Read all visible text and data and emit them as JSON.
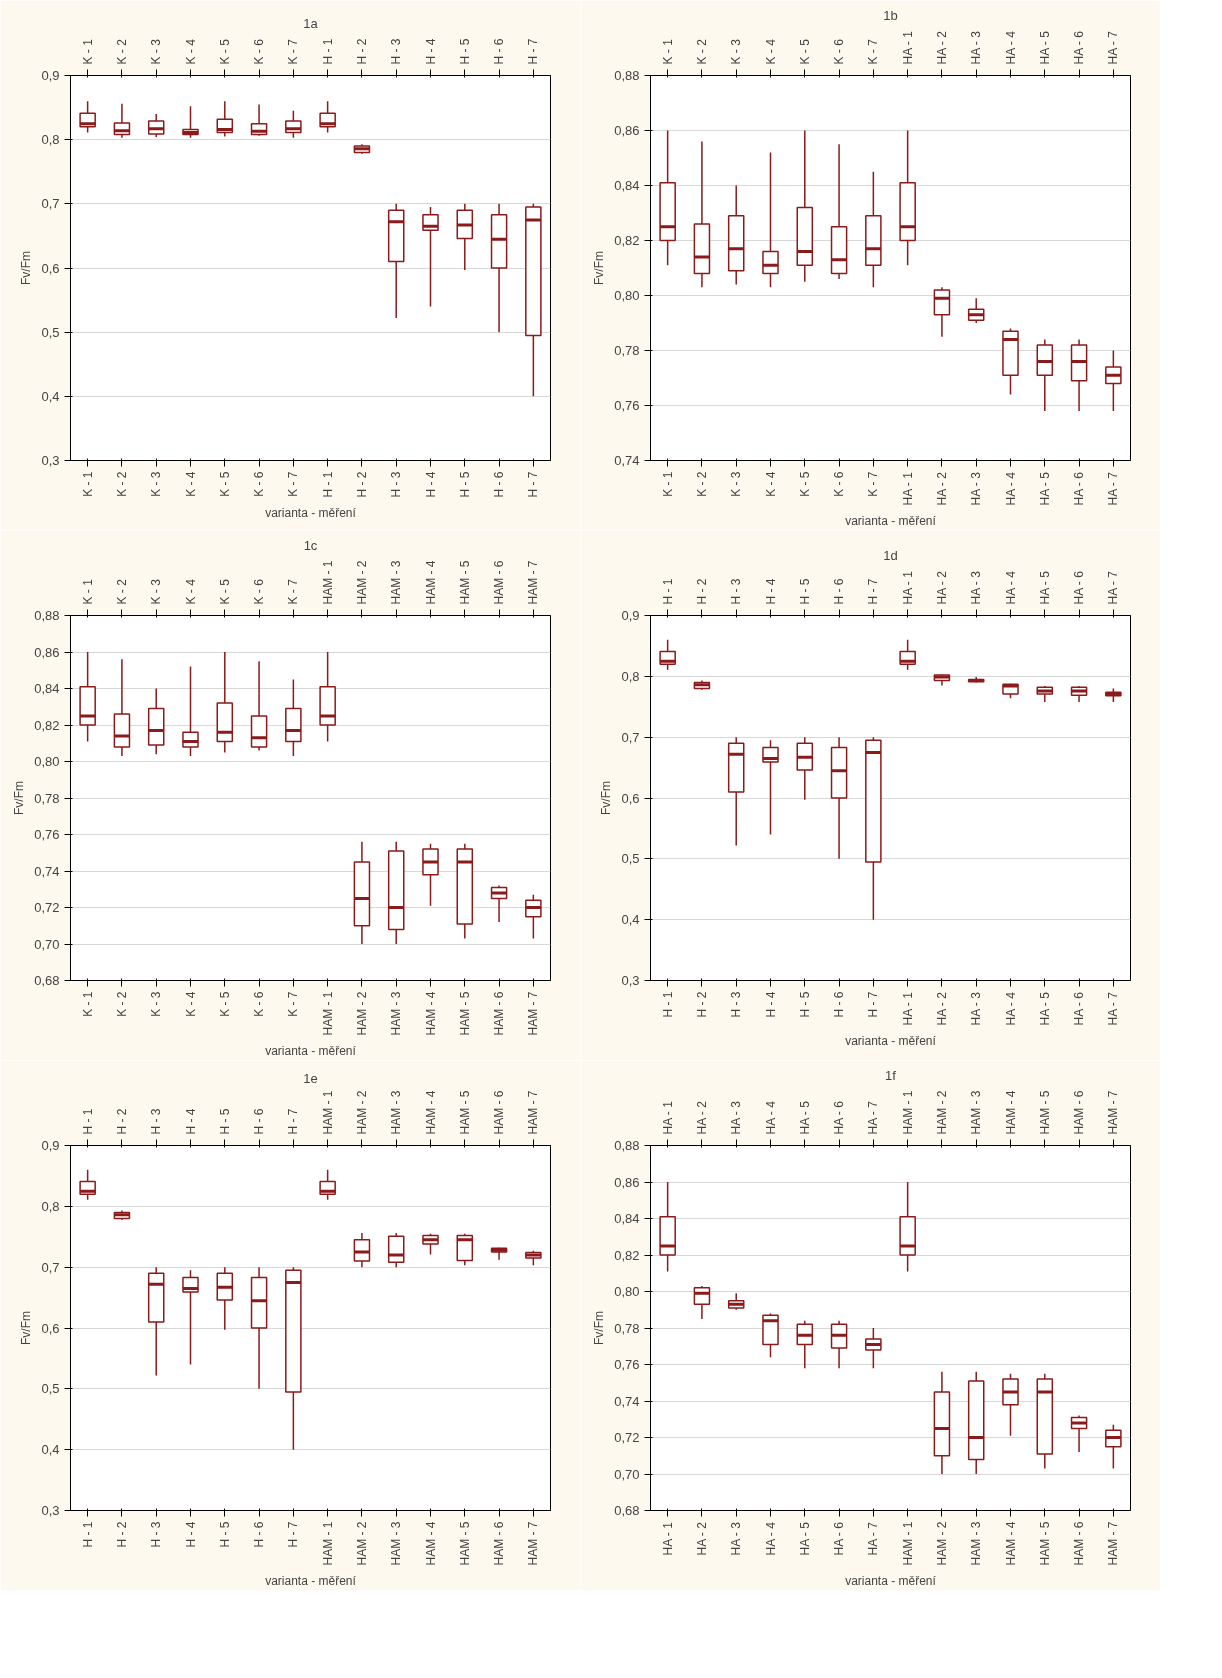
{
  "chart_data": [
    {
      "type": "box",
      "title": "1a",
      "xlabel": "varianta - měření",
      "ylabel": "Fv/Fm",
      "color": "#8b1a1a",
      "grid": "y",
      "categories": [
        "K - 1",
        "K - 2",
        "K - 3",
        "K - 4",
        "K - 5",
        "K - 6",
        "K - 7",
        "H - 1",
        "H - 2",
        "H - 3",
        "H - 4",
        "H - 5",
        "H - 6",
        "H - 7"
      ],
      "ylim": [
        0.3,
        0.9
      ],
      "yticks": [
        {
          "value": 0.3,
          "label": "0,3"
        },
        {
          "value": 0.4,
          "label": "0,4"
        },
        {
          "value": 0.5,
          "label": "0,5"
        },
        {
          "value": 0.6,
          "label": "0,6"
        },
        {
          "value": 0.7,
          "label": "0,7"
        },
        {
          "value": 0.8,
          "label": "0,8"
        },
        {
          "value": 0.9,
          "label": "0,9"
        }
      ],
      "boxes": [
        {
          "low": 0.811,
          "q1": 0.82,
          "median": 0.825,
          "q3": 0.841,
          "high": 0.86
        },
        {
          "low": 0.803,
          "q1": 0.808,
          "median": 0.814,
          "q3": 0.826,
          "high": 0.856
        },
        {
          "low": 0.804,
          "q1": 0.809,
          "median": 0.817,
          "q3": 0.829,
          "high": 0.84
        },
        {
          "low": 0.803,
          "q1": 0.808,
          "median": 0.811,
          "q3": 0.816,
          "high": 0.852
        },
        {
          "low": 0.805,
          "q1": 0.811,
          "median": 0.816,
          "q3": 0.832,
          "high": 0.86
        },
        {
          "low": 0.806,
          "q1": 0.808,
          "median": 0.813,
          "q3": 0.825,
          "high": 0.855
        },
        {
          "low": 0.803,
          "q1": 0.811,
          "median": 0.817,
          "q3": 0.829,
          "high": 0.845
        },
        {
          "low": 0.811,
          "q1": 0.82,
          "median": 0.825,
          "q3": 0.841,
          "high": 0.86
        },
        {
          "low": 0.778,
          "q1": 0.78,
          "median": 0.786,
          "q3": 0.79,
          "high": 0.793
        },
        {
          "low": 0.522,
          "q1": 0.61,
          "median": 0.672,
          "q3": 0.69,
          "high": 0.7
        },
        {
          "low": 0.54,
          "q1": 0.659,
          "median": 0.665,
          "q3": 0.683,
          "high": 0.695
        },
        {
          "low": 0.597,
          "q1": 0.646,
          "median": 0.667,
          "q3": 0.69,
          "high": 0.7
        },
        {
          "low": 0.5,
          "q1": 0.6,
          "median": 0.645,
          "q3": 0.683,
          "high": 0.7
        },
        {
          "low": 0.4,
          "q1": 0.495,
          "median": 0.675,
          "q3": 0.695,
          "high": 0.7
        }
      ]
    },
    {
      "type": "box",
      "title": "1b",
      "xlabel": "varianta - měření",
      "ylabel": "Fv/Fm",
      "color": "#8b1a1a",
      "grid": "y",
      "categories": [
        "K - 1",
        "K - 2",
        "K - 3",
        "K - 4",
        "K - 5",
        "K - 6",
        "K - 7",
        "HA - 1",
        "HA - 2",
        "HA - 3",
        "HA - 4",
        "HA - 5",
        "HA - 6",
        "HA - 7"
      ],
      "ylim": [
        0.74,
        0.88
      ],
      "yticks": [
        {
          "value": 0.74,
          "label": "0,74"
        },
        {
          "value": 0.76,
          "label": "0,76"
        },
        {
          "value": 0.78,
          "label": "0,78"
        },
        {
          "value": 0.8,
          "label": "0,80"
        },
        {
          "value": 0.82,
          "label": "0,82"
        },
        {
          "value": 0.84,
          "label": "0,84"
        },
        {
          "value": 0.86,
          "label": "0,86"
        },
        {
          "value": 0.88,
          "label": "0,88"
        }
      ],
      "boxes": [
        {
          "low": 0.811,
          "q1": 0.82,
          "median": 0.825,
          "q3": 0.841,
          "high": 0.86
        },
        {
          "low": 0.803,
          "q1": 0.808,
          "median": 0.814,
          "q3": 0.826,
          "high": 0.856
        },
        {
          "low": 0.804,
          "q1": 0.809,
          "median": 0.817,
          "q3": 0.829,
          "high": 0.84
        },
        {
          "low": 0.803,
          "q1": 0.808,
          "median": 0.811,
          "q3": 0.816,
          "high": 0.852
        },
        {
          "low": 0.805,
          "q1": 0.811,
          "median": 0.816,
          "q3": 0.832,
          "high": 0.86
        },
        {
          "low": 0.806,
          "q1": 0.808,
          "median": 0.813,
          "q3": 0.825,
          "high": 0.855
        },
        {
          "low": 0.803,
          "q1": 0.811,
          "median": 0.817,
          "q3": 0.829,
          "high": 0.845
        },
        {
          "low": 0.811,
          "q1": 0.82,
          "median": 0.825,
          "q3": 0.841,
          "high": 0.86
        },
        {
          "low": 0.785,
          "q1": 0.793,
          "median": 0.799,
          "q3": 0.802,
          "high": 0.803
        },
        {
          "low": 0.79,
          "q1": 0.791,
          "median": 0.793,
          "q3": 0.795,
          "high": 0.799
        },
        {
          "low": 0.764,
          "q1": 0.771,
          "median": 0.784,
          "q3": 0.787,
          "high": 0.788
        },
        {
          "low": 0.758,
          "q1": 0.771,
          "median": 0.776,
          "q3": 0.782,
          "high": 0.784
        },
        {
          "low": 0.758,
          "q1": 0.769,
          "median": 0.776,
          "q3": 0.782,
          "high": 0.784
        },
        {
          "low": 0.758,
          "q1": 0.768,
          "median": 0.771,
          "q3": 0.774,
          "high": 0.78
        }
      ]
    },
    {
      "type": "box",
      "title": "1c",
      "xlabel": "varianta - měření",
      "ylabel": "Fv/Fm",
      "color": "#8b1a1a",
      "grid": "y",
      "categories": [
        "K - 1",
        "K - 2",
        "K - 3",
        "K - 4",
        "K - 5",
        "K - 6",
        "K - 7",
        "HAM - 1",
        "HAM - 2",
        "HAM - 3",
        "HAM - 4",
        "HAM - 5",
        "HAM - 6",
        "HAM - 7"
      ],
      "ylim": [
        0.68,
        0.88
      ],
      "yticks": [
        {
          "value": 0.68,
          "label": "0,68"
        },
        {
          "value": 0.7,
          "label": "0,70"
        },
        {
          "value": 0.72,
          "label": "0,72"
        },
        {
          "value": 0.74,
          "label": "0,74"
        },
        {
          "value": 0.76,
          "label": "0,76"
        },
        {
          "value": 0.78,
          "label": "0,78"
        },
        {
          "value": 0.8,
          "label": "0,80"
        },
        {
          "value": 0.82,
          "label": "0,82"
        },
        {
          "value": 0.84,
          "label": "0,84"
        },
        {
          "value": 0.86,
          "label": "0,86"
        },
        {
          "value": 0.88,
          "label": "0,88"
        }
      ],
      "boxes": [
        {
          "low": 0.811,
          "q1": 0.82,
          "median": 0.825,
          "q3": 0.841,
          "high": 0.86
        },
        {
          "low": 0.803,
          "q1": 0.808,
          "median": 0.814,
          "q3": 0.826,
          "high": 0.856
        },
        {
          "low": 0.804,
          "q1": 0.809,
          "median": 0.817,
          "q3": 0.829,
          "high": 0.84
        },
        {
          "low": 0.803,
          "q1": 0.808,
          "median": 0.811,
          "q3": 0.816,
          "high": 0.852
        },
        {
          "low": 0.805,
          "q1": 0.811,
          "median": 0.816,
          "q3": 0.832,
          "high": 0.86
        },
        {
          "low": 0.806,
          "q1": 0.808,
          "median": 0.813,
          "q3": 0.825,
          "high": 0.855
        },
        {
          "low": 0.803,
          "q1": 0.811,
          "median": 0.817,
          "q3": 0.829,
          "high": 0.845
        },
        {
          "low": 0.811,
          "q1": 0.82,
          "median": 0.825,
          "q3": 0.841,
          "high": 0.86
        },
        {
          "low": 0.7,
          "q1": 0.71,
          "median": 0.725,
          "q3": 0.745,
          "high": 0.756
        },
        {
          "low": 0.7,
          "q1": 0.708,
          "median": 0.72,
          "q3": 0.751,
          "high": 0.756
        },
        {
          "low": 0.721,
          "q1": 0.738,
          "median": 0.745,
          "q3": 0.752,
          "high": 0.755
        },
        {
          "low": 0.703,
          "q1": 0.711,
          "median": 0.745,
          "q3": 0.752,
          "high": 0.755
        },
        {
          "low": 0.712,
          "q1": 0.725,
          "median": 0.728,
          "q3": 0.731,
          "high": 0.732
        },
        {
          "low": 0.703,
          "q1": 0.715,
          "median": 0.72,
          "q3": 0.724,
          "high": 0.727
        }
      ]
    },
    {
      "type": "box",
      "title": "1d",
      "xlabel": "varianta - měření",
      "ylabel": "Fv/Fm",
      "color": "#8b1a1a",
      "grid": "y",
      "categories": [
        "H - 1",
        "H - 2",
        "H - 3",
        "H - 4",
        "H - 5",
        "H - 6",
        "H - 7",
        "HA - 1",
        "HA - 2",
        "HA - 3",
        "HA - 4",
        "HA - 5",
        "HA - 6",
        "HA - 7"
      ],
      "ylim": [
        0.3,
        0.9
      ],
      "yticks": [
        {
          "value": 0.3,
          "label": "0,3"
        },
        {
          "value": 0.4,
          "label": "0,4"
        },
        {
          "value": 0.5,
          "label": "0,5"
        },
        {
          "value": 0.6,
          "label": "0,6"
        },
        {
          "value": 0.7,
          "label": "0,7"
        },
        {
          "value": 0.8,
          "label": "0,8"
        },
        {
          "value": 0.9,
          "label": "0,9"
        }
      ],
      "boxes": [
        {
          "low": 0.811,
          "q1": 0.82,
          "median": 0.825,
          "q3": 0.841,
          "high": 0.86
        },
        {
          "low": 0.778,
          "q1": 0.78,
          "median": 0.786,
          "q3": 0.79,
          "high": 0.793
        },
        {
          "low": 0.522,
          "q1": 0.61,
          "median": 0.672,
          "q3": 0.69,
          "high": 0.7
        },
        {
          "low": 0.54,
          "q1": 0.659,
          "median": 0.665,
          "q3": 0.683,
          "high": 0.695
        },
        {
          "low": 0.597,
          "q1": 0.646,
          "median": 0.667,
          "q3": 0.69,
          "high": 0.7
        },
        {
          "low": 0.5,
          "q1": 0.6,
          "median": 0.645,
          "q3": 0.683,
          "high": 0.7
        },
        {
          "low": 0.4,
          "q1": 0.495,
          "median": 0.675,
          "q3": 0.695,
          "high": 0.7
        },
        {
          "low": 0.811,
          "q1": 0.82,
          "median": 0.825,
          "q3": 0.841,
          "high": 0.86
        },
        {
          "low": 0.785,
          "q1": 0.793,
          "median": 0.799,
          "q3": 0.802,
          "high": 0.803
        },
        {
          "low": 0.79,
          "q1": 0.791,
          "median": 0.793,
          "q3": 0.795,
          "high": 0.799
        },
        {
          "low": 0.764,
          "q1": 0.771,
          "median": 0.784,
          "q3": 0.787,
          "high": 0.788
        },
        {
          "low": 0.758,
          "q1": 0.771,
          "median": 0.776,
          "q3": 0.782,
          "high": 0.784
        },
        {
          "low": 0.758,
          "q1": 0.769,
          "median": 0.776,
          "q3": 0.782,
          "high": 0.784
        },
        {
          "low": 0.758,
          "q1": 0.768,
          "median": 0.771,
          "q3": 0.774,
          "high": 0.78
        }
      ]
    },
    {
      "type": "box",
      "title": "1e",
      "xlabel": "varianta - měření",
      "ylabel": "Fv/Fm",
      "color": "#8b1a1a",
      "grid": "y",
      "categories": [
        "H - 1",
        "H - 2",
        "H - 3",
        "H - 4",
        "H - 5",
        "H - 6",
        "H - 7",
        "HAM - 1",
        "HAM - 2",
        "HAM - 3",
        "HAM - 4",
        "HAM - 5",
        "HAM - 6",
        "HAM - 7"
      ],
      "ylim": [
        0.3,
        0.9
      ],
      "yticks": [
        {
          "value": 0.3,
          "label": "0,3"
        },
        {
          "value": 0.4,
          "label": "0,4"
        },
        {
          "value": 0.5,
          "label": "0,5"
        },
        {
          "value": 0.6,
          "label": "0,6"
        },
        {
          "value": 0.7,
          "label": "0,7"
        },
        {
          "value": 0.8,
          "label": "0,8"
        },
        {
          "value": 0.9,
          "label": "0,9"
        }
      ],
      "boxes": [
        {
          "low": 0.811,
          "q1": 0.82,
          "median": 0.825,
          "q3": 0.841,
          "high": 0.86
        },
        {
          "low": 0.778,
          "q1": 0.78,
          "median": 0.786,
          "q3": 0.79,
          "high": 0.793
        },
        {
          "low": 0.522,
          "q1": 0.61,
          "median": 0.672,
          "q3": 0.69,
          "high": 0.7
        },
        {
          "low": 0.54,
          "q1": 0.659,
          "median": 0.665,
          "q3": 0.683,
          "high": 0.695
        },
        {
          "low": 0.597,
          "q1": 0.646,
          "median": 0.667,
          "q3": 0.69,
          "high": 0.7
        },
        {
          "low": 0.5,
          "q1": 0.6,
          "median": 0.645,
          "q3": 0.683,
          "high": 0.7
        },
        {
          "low": 0.4,
          "q1": 0.495,
          "median": 0.675,
          "q3": 0.695,
          "high": 0.7
        },
        {
          "low": 0.811,
          "q1": 0.82,
          "median": 0.825,
          "q3": 0.841,
          "high": 0.86
        },
        {
          "low": 0.7,
          "q1": 0.71,
          "median": 0.725,
          "q3": 0.745,
          "high": 0.756
        },
        {
          "low": 0.7,
          "q1": 0.708,
          "median": 0.72,
          "q3": 0.751,
          "high": 0.756
        },
        {
          "low": 0.721,
          "q1": 0.738,
          "median": 0.745,
          "q3": 0.752,
          "high": 0.755
        },
        {
          "low": 0.703,
          "q1": 0.711,
          "median": 0.745,
          "q3": 0.752,
          "high": 0.755
        },
        {
          "low": 0.712,
          "q1": 0.725,
          "median": 0.728,
          "q3": 0.731,
          "high": 0.732
        },
        {
          "low": 0.703,
          "q1": 0.715,
          "median": 0.72,
          "q3": 0.724,
          "high": 0.727
        }
      ]
    },
    {
      "type": "box",
      "title": "1f",
      "xlabel": "varianta - měření",
      "ylabel": "Fv/Fm",
      "color": "#8b1a1a",
      "grid": "y",
      "categories": [
        "HA - 1",
        "HA - 2",
        "HA - 3",
        "HA - 4",
        "HA - 5",
        "HA - 6",
        "HA - 7",
        "HAM - 1",
        "HAM - 2",
        "HAM - 3",
        "HAM - 4",
        "HAM - 5",
        "HAM - 6",
        "HAM - 7"
      ],
      "ylim": [
        0.68,
        0.88
      ],
      "yticks": [
        {
          "value": 0.68,
          "label": "0,68"
        },
        {
          "value": 0.7,
          "label": "0,70"
        },
        {
          "value": 0.72,
          "label": "0,72"
        },
        {
          "value": 0.74,
          "label": "0,74"
        },
        {
          "value": 0.76,
          "label": "0,76"
        },
        {
          "value": 0.78,
          "label": "0,78"
        },
        {
          "value": 0.8,
          "label": "0,80"
        },
        {
          "value": 0.82,
          "label": "0,82"
        },
        {
          "value": 0.84,
          "label": "0,84"
        },
        {
          "value": 0.86,
          "label": "0,86"
        },
        {
          "value": 0.88,
          "label": "0,88"
        }
      ],
      "boxes": [
        {
          "low": 0.811,
          "q1": 0.82,
          "median": 0.825,
          "q3": 0.841,
          "high": 0.86
        },
        {
          "low": 0.785,
          "q1": 0.793,
          "median": 0.799,
          "q3": 0.802,
          "high": 0.803
        },
        {
          "low": 0.79,
          "q1": 0.791,
          "median": 0.793,
          "q3": 0.795,
          "high": 0.799
        },
        {
          "low": 0.764,
          "q1": 0.771,
          "median": 0.784,
          "q3": 0.787,
          "high": 0.788
        },
        {
          "low": 0.758,
          "q1": 0.771,
          "median": 0.776,
          "q3": 0.782,
          "high": 0.784
        },
        {
          "low": 0.758,
          "q1": 0.769,
          "median": 0.776,
          "q3": 0.782,
          "high": 0.784
        },
        {
          "low": 0.758,
          "q1": 0.768,
          "median": 0.771,
          "q3": 0.774,
          "high": 0.78
        },
        {
          "low": 0.811,
          "q1": 0.82,
          "median": 0.825,
          "q3": 0.841,
          "high": 0.86
        },
        {
          "low": 0.7,
          "q1": 0.71,
          "median": 0.725,
          "q3": 0.745,
          "high": 0.756
        },
        {
          "low": 0.7,
          "q1": 0.708,
          "median": 0.72,
          "q3": 0.751,
          "high": 0.756
        },
        {
          "low": 0.721,
          "q1": 0.738,
          "median": 0.745,
          "q3": 0.752,
          "high": 0.755
        },
        {
          "low": 0.703,
          "q1": 0.711,
          "median": 0.745,
          "q3": 0.752,
          "high": 0.755
        },
        {
          "low": 0.712,
          "q1": 0.725,
          "median": 0.728,
          "q3": 0.731,
          "high": 0.732
        },
        {
          "low": 0.703,
          "q1": 0.715,
          "median": 0.72,
          "q3": 0.724,
          "high": 0.727
        }
      ]
    }
  ]
}
